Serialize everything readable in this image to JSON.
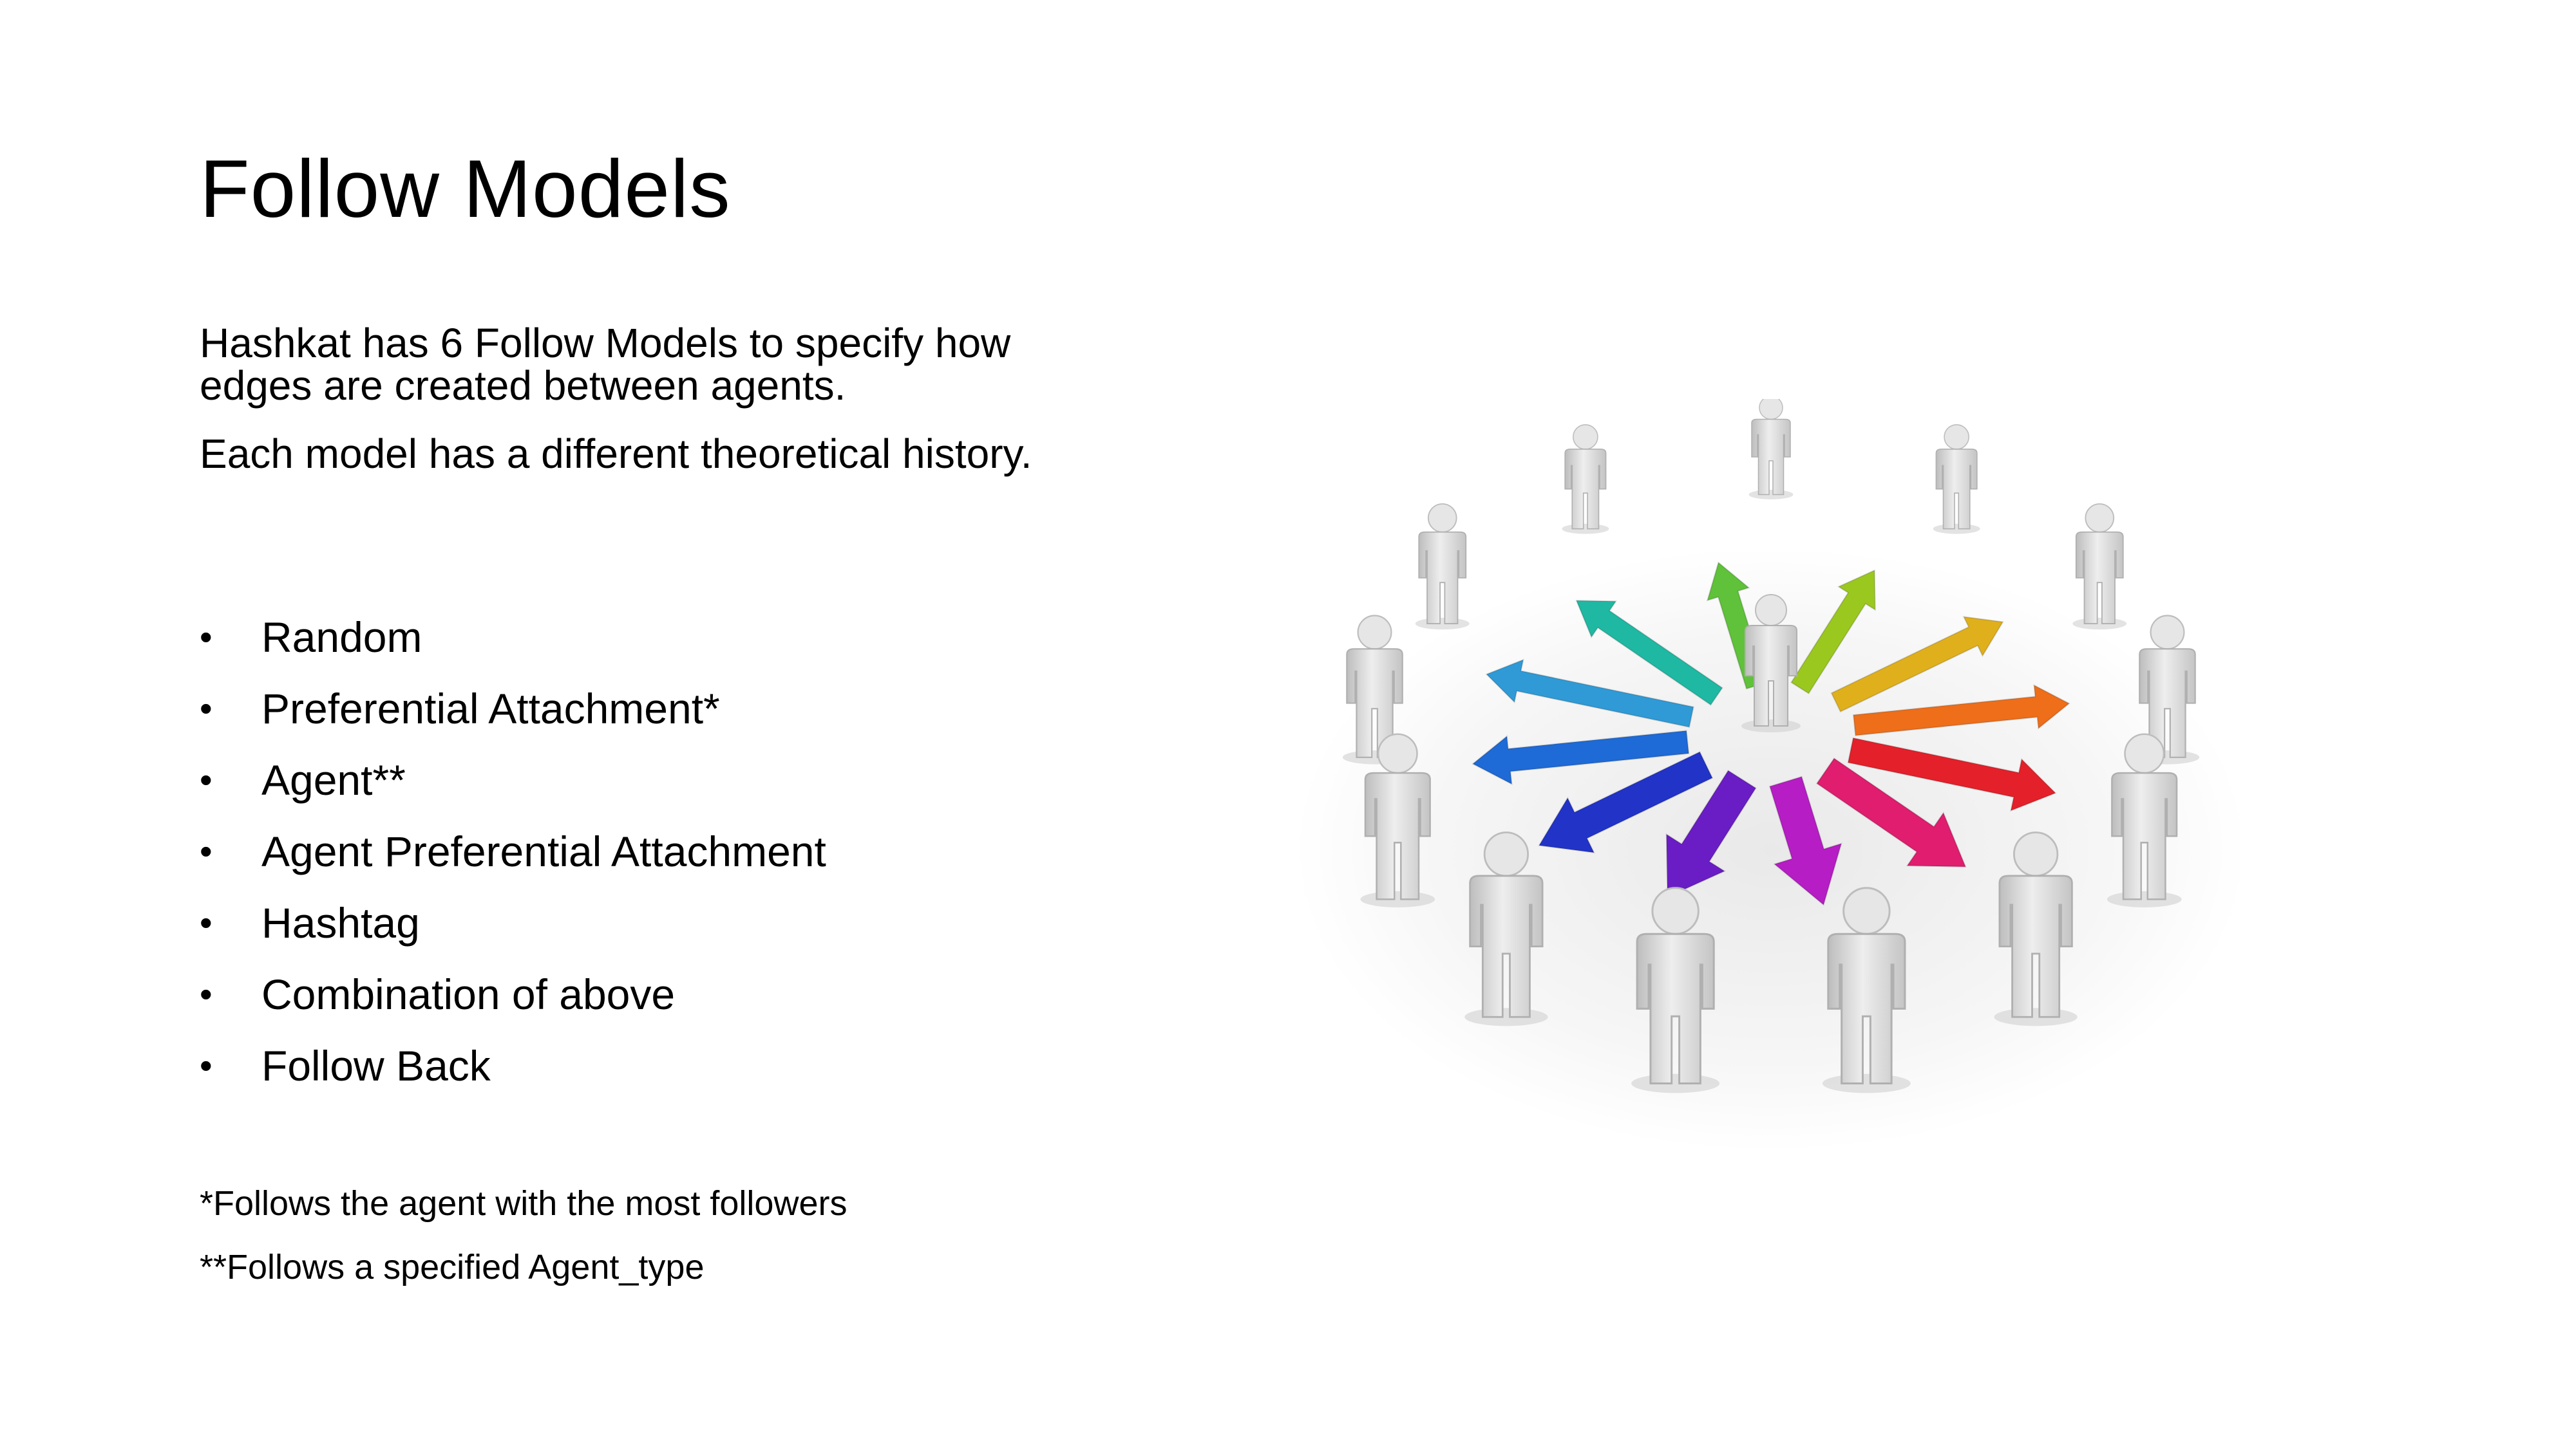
{
  "slide": {
    "title": "Follow Models",
    "intro": [
      "Hashkat has 6 Follow Models to specify how edges are created between agents.",
      "Each model has a different theoretical history."
    ],
    "models": [
      "Random",
      "Preferential Attachment*",
      "Agent**",
      "Agent Preferential Attachment",
      "Hashtag",
      "Combination of above",
      "Follow Back"
    ],
    "footnotes": [
      "*Follows the agent with the most followers",
      "**Follows a specified Agent_type"
    ],
    "bullet_glyph": "•",
    "illustration": {
      "icon": "network-people-arrows-icon",
      "figure_color": "#d9d9d9",
      "arrow_colors": [
        "#2f9ad6",
        "#1fb8a3",
        "#5fc23a",
        "#9bc81f",
        "#e0b01c",
        "#ee6e1a",
        "#e4202a",
        "#e01d6e",
        "#b61dc4",
        "#6a1dc4",
        "#2233c8",
        "#1e6ad6"
      ]
    }
  }
}
